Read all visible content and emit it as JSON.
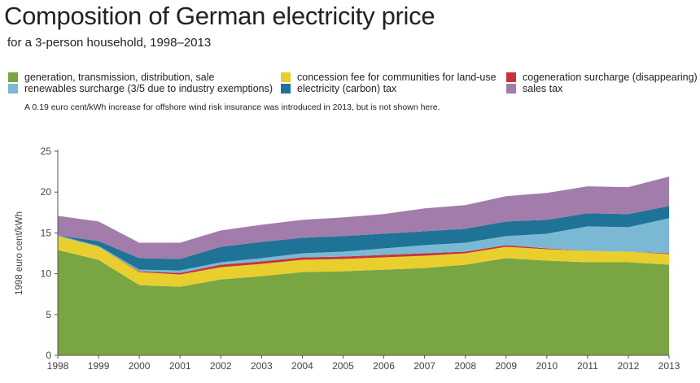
{
  "chart_data": {
    "type": "area",
    "stacked": true,
    "title": "Composition of German electricity price",
    "subtitle": "for a 3-person household, 1998–2013",
    "note": "A 0.19 euro cent/kWh increase for offshore wind risk insurance was introduced in 2013, but is not shown here.",
    "ylabel": "1998 euro cent/kWh",
    "xlabel": "",
    "ylim": [
      0,
      25
    ],
    "yticks": [
      0,
      5,
      10,
      15,
      20,
      25
    ],
    "grid": false,
    "legend_position": "top",
    "x": [
      1998,
      1999,
      2000,
      2001,
      2002,
      2003,
      2004,
      2005,
      2006,
      2007,
      2008,
      2009,
      2010,
      2011,
      2012,
      2013
    ],
    "series": [
      {
        "name": "generation, transmission, distribution, sale",
        "color": "#7aa543",
        "values": [
          12.9,
          11.7,
          8.6,
          8.4,
          9.3,
          9.7,
          10.2,
          10.3,
          10.5,
          10.7,
          11.1,
          11.9,
          11.6,
          11.4,
          11.4,
          11.1
        ]
      },
      {
        "name": "concession fee for communities for land-use",
        "color": "#e8cf2e",
        "values": [
          1.7,
          1.6,
          1.6,
          1.5,
          1.5,
          1.5,
          1.5,
          1.5,
          1.5,
          1.5,
          1.4,
          1.4,
          1.4,
          1.4,
          1.3,
          1.3
        ]
      },
      {
        "name": "cogeneration surcharge (disappearing)",
        "color": "#c7333b",
        "values": [
          0.0,
          0.0,
          0.1,
          0.2,
          0.3,
          0.3,
          0.3,
          0.3,
          0.3,
          0.3,
          0.2,
          0.2,
          0.1,
          0.0,
          0.0,
          0.1
        ]
      },
      {
        "name": "renewables surcharge (3/5 due to industry exemptions)",
        "color": "#7ab8d4",
        "values": [
          0.1,
          0.1,
          0.2,
          0.3,
          0.3,
          0.4,
          0.5,
          0.6,
          0.8,
          1.0,
          1.1,
          1.1,
          1.8,
          3.0,
          3.0,
          4.3
        ]
      },
      {
        "name": "electricity (carbon) tax",
        "color": "#1f7396",
        "values": [
          0.0,
          0.6,
          1.4,
          1.4,
          1.9,
          2.0,
          1.9,
          1.9,
          1.8,
          1.7,
          1.7,
          1.8,
          1.7,
          1.6,
          1.6,
          1.5
        ]
      },
      {
        "name": "sales tax",
        "color": "#a27cab",
        "values": [
          2.4,
          2.4,
          1.9,
          2.0,
          2.0,
          2.1,
          2.2,
          2.3,
          2.4,
          2.8,
          2.9,
          3.1,
          3.3,
          3.3,
          3.3,
          3.6
        ]
      }
    ]
  }
}
